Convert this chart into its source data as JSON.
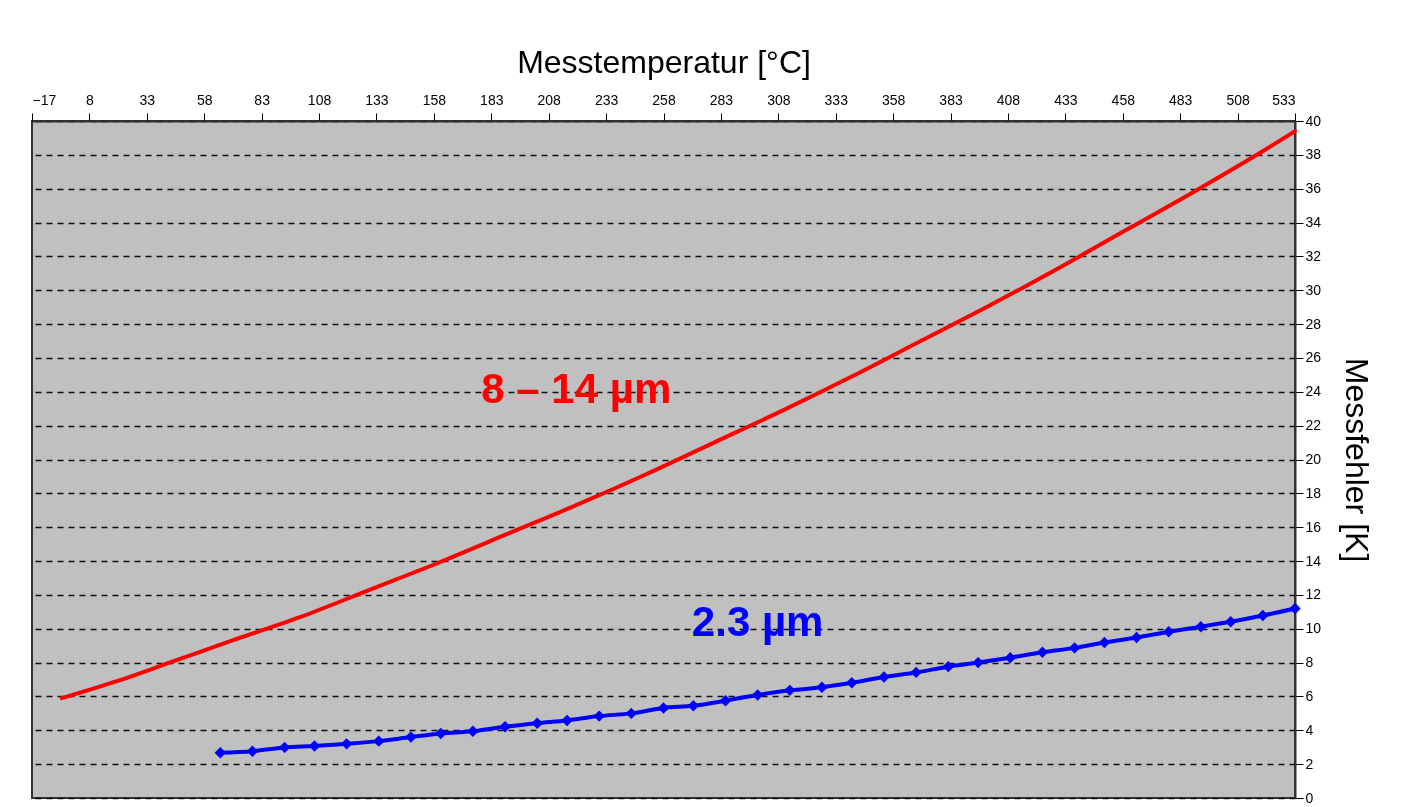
{
  "chart_data": {
    "type": "line",
    "xlabel": "Messtemperatur [°C]",
    "ylabel": "Messfehler [K]",
    "xlim": [
      -17,
      533
    ],
    "xticks": [
      -17,
      8,
      33,
      58,
      83,
      108,
      133,
      158,
      183,
      208,
      233,
      258,
      283,
      308,
      333,
      358,
      383,
      408,
      433,
      458,
      483,
      508,
      533
    ],
    "ylim": [
      0,
      40
    ],
    "yticks": [
      0,
      2,
      4,
      6,
      8,
      10,
      12,
      14,
      16,
      18,
      20,
      22,
      24,
      26,
      28,
      30,
      32,
      34,
      36,
      38,
      40
    ],
    "grid": "y",
    "series": [
      {
        "name": "8 – 14 µm",
        "color": "#ff0000",
        "marker": "none",
        "x": [
          -4,
          20,
          45,
          70,
          100,
          130,
          160,
          190,
          220,
          250,
          280,
          310,
          340,
          370,
          400,
          430,
          460,
          490,
          520,
          533
        ],
        "values": [
          5.9,
          6.9,
          8.1,
          9.3,
          10.7,
          12.3,
          13.9,
          15.6,
          17.3,
          19.1,
          21.0,
          22.9,
          24.9,
          27.0,
          29.1,
          31.3,
          33.6,
          35.9,
          38.3,
          39.4
        ]
      },
      {
        "name": "2.3 µm",
        "color": "#0000ff",
        "marker": "diamond",
        "x": [
          65,
          79,
          93,
          106,
          120,
          134,
          148,
          161,
          175,
          189,
          203,
          216,
          230,
          244,
          258,
          271,
          285,
          299,
          313,
          327,
          340,
          354,
          368,
          382,
          395,
          409,
          423,
          437,
          450,
          464,
          478,
          492,
          505,
          519,
          533
        ],
        "values": [
          2.67,
          2.76,
          2.99,
          3.07,
          3.2,
          3.36,
          3.6,
          3.81,
          3.94,
          4.21,
          4.42,
          4.58,
          4.84,
          5.0,
          5.32,
          5.45,
          5.75,
          6.09,
          6.36,
          6.54,
          6.81,
          7.15,
          7.42,
          7.76,
          8.0,
          8.29,
          8.61,
          8.87,
          9.19,
          9.48,
          9.82,
          10.12,
          10.41,
          10.78,
          11.2
        ]
      }
    ]
  }
}
